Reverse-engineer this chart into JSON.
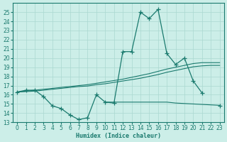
{
  "xlabel": "Humidex (Indice chaleur)",
  "color": "#1a7a6e",
  "bg_color": "#cceee8",
  "grid_color": "#aad8d0",
  "ylim": [
    13,
    26
  ],
  "xlim": [
    -0.5,
    23.5
  ],
  "yticks": [
    13,
    14,
    15,
    16,
    17,
    18,
    19,
    20,
    21,
    22,
    23,
    24,
    25
  ],
  "xticks": [
    0,
    1,
    2,
    3,
    4,
    5,
    6,
    7,
    8,
    9,
    10,
    11,
    12,
    13,
    14,
    15,
    16,
    17,
    18,
    19,
    20,
    21,
    22,
    23
  ],
  "x_all": [
    0,
    1,
    2,
    3,
    4,
    5,
    6,
    7,
    8,
    9,
    10,
    11,
    12,
    13,
    14,
    15,
    16,
    17,
    18,
    19,
    20,
    21,
    22,
    23
  ],
  "main_y": [
    16.3,
    16.5,
    16.5,
    15.8,
    14.8,
    14.5,
    13.8,
    13.3,
    13.5,
    16.0,
    15.2,
    15.1,
    20.7,
    20.7,
    25.0,
    24.3,
    25.3,
    20.5,
    19.3,
    20.0,
    17.5,
    16.2,
    null,
    14.8
  ],
  "trend1_y": [
    16.3,
    16.4,
    16.5,
    16.6,
    16.7,
    16.8,
    16.9,
    17.0,
    17.1,
    17.25,
    17.4,
    17.55,
    17.7,
    17.9,
    18.1,
    18.3,
    18.55,
    18.8,
    19.0,
    19.2,
    19.4,
    19.5,
    19.5,
    19.5
  ],
  "trend2_y": [
    16.3,
    16.35,
    16.4,
    16.5,
    16.6,
    16.7,
    16.8,
    16.9,
    16.95,
    17.1,
    17.2,
    17.35,
    17.5,
    17.65,
    17.8,
    18.0,
    18.2,
    18.45,
    18.65,
    18.85,
    19.05,
    19.15,
    19.2,
    19.2
  ],
  "flat_x": [
    10,
    11,
    12,
    13,
    14,
    15,
    16,
    17,
    18,
    19,
    20,
    21,
    22,
    23
  ],
  "flat_y": [
    15.2,
    15.2,
    15.2,
    15.2,
    15.2,
    15.2,
    15.2,
    15.2,
    15.1,
    15.05,
    15.0,
    14.95,
    14.9,
    14.85
  ]
}
